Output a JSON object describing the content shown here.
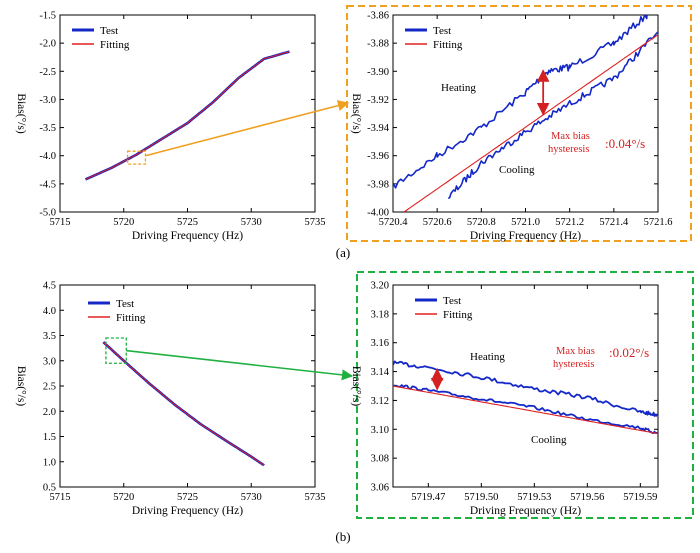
{
  "figure": {
    "panel_a": "(a)",
    "panel_b": "(b)",
    "colors": {
      "test": "#1428c8",
      "fit": "#e02020",
      "zoom_a": "#f0a020",
      "zoom_b": "#20b040",
      "annot": "#d42020"
    }
  },
  "chart_data": [
    {
      "type": "line",
      "panel": "a-main",
      "title": "",
      "xlabel": "Driving Frequency  (Hz)",
      "ylabel": "Bias(°/s)",
      "xlim": [
        5715,
        5735
      ],
      "ylim": [
        -5.0,
        -1.5
      ],
      "xticks": [
        5715,
        5720,
        5725,
        5730,
        5735
      ],
      "yticks": [
        -5.0,
        -4.5,
        -4.0,
        -3.5,
        -3.0,
        -2.5,
        -2.0,
        -1.5
      ],
      "xtick_labels": [
        "5715",
        "5720",
        "5725",
        "5730",
        "5735"
      ],
      "ytick_labels": [
        "-5.0",
        "-4.5",
        "-4.0",
        "-3.5",
        "-3.0",
        "-2.5",
        "-2.0",
        "-1.5"
      ],
      "legend": [
        "Test",
        "Fitting"
      ],
      "series": [
        {
          "name": "Test",
          "x": [
            5717,
            5719,
            5721,
            5723,
            5725,
            5727,
            5729,
            5731,
            5733
          ],
          "y": [
            -4.42,
            -4.22,
            -3.98,
            -3.7,
            -3.42,
            -3.05,
            -2.62,
            -2.28,
            -2.15
          ]
        },
        {
          "name": "Fitting",
          "x": [
            5717,
            5719,
            5721,
            5723,
            5725,
            5727,
            5729,
            5731,
            5733
          ],
          "y": [
            -4.42,
            -4.22,
            -3.98,
            -3.7,
            -3.42,
            -3.05,
            -2.62,
            -2.28,
            -2.15
          ]
        }
      ]
    },
    {
      "type": "line",
      "panel": "a-zoom",
      "xlabel": "Driving Frequency  (Hz)",
      "ylabel": "Bias(°/s)",
      "xlim": [
        5720.4,
        5721.6
      ],
      "ylim": [
        -4.0,
        -3.86
      ],
      "xticks": [
        5720.4,
        5720.6,
        5720.8,
        5721.0,
        5721.2,
        5721.4,
        5721.6
      ],
      "yticks": [
        -4.0,
        -3.98,
        -3.96,
        -3.94,
        -3.92,
        -3.9,
        -3.88,
        -3.86
      ],
      "xtick_labels": [
        "5720.4",
        "5720.6",
        "5720.8",
        "5721.0",
        "5721.2",
        "5721.4",
        "5721.6"
      ],
      "ytick_labels": [
        "-4.00",
        "-3.98",
        "-3.96",
        "-3.94",
        "-3.92",
        "-3.90",
        "-3.88",
        "-3.86"
      ],
      "legend": [
        "Test",
        "Fitting"
      ],
      "annotations": {
        "heating": "Heating",
        "cooling": "Cooling",
        "max_bias": "Max bias",
        "hysteresis": "hysteresis",
        "value": ":0.04°/s"
      },
      "series": [
        {
          "name": "Test (heating)",
          "x": [
            5720.4,
            5720.6,
            5720.8,
            5721.0,
            5721.1,
            5721.2,
            5721.4,
            5721.55
          ],
          "y": [
            -3.982,
            -3.96,
            -3.94,
            -3.915,
            -3.9,
            -3.897,
            -3.88,
            -3.86
          ]
        },
        {
          "name": "Test (cooling)",
          "x": [
            5720.65,
            5720.8,
            5721.0,
            5721.2,
            5721.4,
            5721.6
          ],
          "y": [
            -3.99,
            -3.965,
            -3.943,
            -3.923,
            -3.905,
            -3.872
          ]
        },
        {
          "name": "Fitting",
          "x": [
            5720.45,
            5721.6
          ],
          "y": [
            -4.0,
            -3.874
          ]
        }
      ]
    },
    {
      "type": "line",
      "panel": "b-main",
      "xlabel": "Driving Frequency  (Hz)",
      "ylabel": "Bias(°/s)",
      "xlim": [
        5715,
        5735
      ],
      "ylim": [
        0.5,
        4.5
      ],
      "xticks": [
        5715,
        5720,
        5725,
        5730,
        5735
      ],
      "yticks": [
        0.5,
        1.0,
        1.5,
        2.0,
        2.5,
        3.0,
        3.5,
        4.0,
        4.5
      ],
      "xtick_labels": [
        "5715",
        "5720",
        "5725",
        "5730",
        "5735"
      ],
      "ytick_labels": [
        "0.5",
        "1.0",
        "1.5",
        "2.0",
        "2.5",
        "3.0",
        "3.5",
        "4.0",
        "4.5"
      ],
      "legend": [
        "Test",
        "Fitting"
      ],
      "series": [
        {
          "name": "Test",
          "x": [
            5718.4,
            5720,
            5722,
            5724,
            5726,
            5728,
            5730,
            5731
          ],
          "y": [
            3.37,
            3.0,
            2.55,
            2.13,
            1.75,
            1.42,
            1.1,
            0.93
          ]
        },
        {
          "name": "Fitting",
          "x": [
            5718.4,
            5720,
            5722,
            5724,
            5726,
            5728,
            5730,
            5731
          ],
          "y": [
            3.37,
            3.0,
            2.55,
            2.13,
            1.75,
            1.42,
            1.1,
            0.93
          ]
        }
      ]
    },
    {
      "type": "line",
      "panel": "b-zoom",
      "xlabel": "Driving Frequency  (Hz)",
      "ylabel": "Bias(°/s)",
      "xlim": [
        5719.45,
        5719.6
      ],
      "ylim": [
        3.06,
        3.2
      ],
      "xticks": [
        5719.47,
        5719.5,
        5719.53,
        5719.56,
        5719.59
      ],
      "yticks": [
        3.06,
        3.08,
        3.1,
        3.12,
        3.14,
        3.16,
        3.18,
        3.2
      ],
      "xtick_labels": [
        "5719.47",
        "5719.50",
        "5719.53",
        "5719.56",
        "5719.59"
      ],
      "ytick_labels": [
        "3.06",
        "3.08",
        "3.10",
        "3.12",
        "3.14",
        "3.16",
        "3.18",
        "3.20"
      ],
      "legend": [
        "Test",
        "Fitting"
      ],
      "annotations": {
        "heating": "Heating",
        "cooling": "Cooling",
        "max_bias": "Max bias",
        "hysteresis": "hysteresis",
        "value": ":0.02°/s"
      },
      "series": [
        {
          "name": "Test (heating)",
          "x": [
            5719.45,
            5719.47,
            5719.5,
            5719.53,
            5719.56,
            5719.59,
            5719.6
          ],
          "y": [
            3.146,
            3.143,
            3.136,
            3.128,
            3.122,
            3.112,
            3.11
          ]
        },
        {
          "name": "Test (cooling)",
          "x": [
            5719.45,
            5719.47,
            5719.5,
            5719.53,
            5719.56,
            5719.59,
            5719.6
          ],
          "y": [
            3.131,
            3.127,
            3.121,
            3.115,
            3.107,
            3.101,
            3.097
          ]
        },
        {
          "name": "Fitting",
          "x": [
            5719.45,
            5719.6
          ],
          "y": [
            3.13,
            3.097
          ]
        }
      ]
    }
  ]
}
